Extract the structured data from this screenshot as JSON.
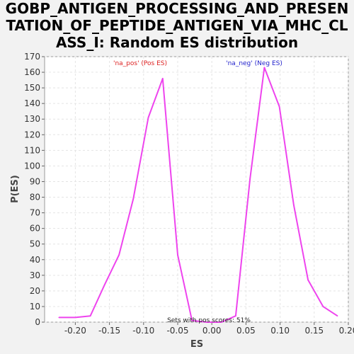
{
  "chart_data": {
    "type": "line",
    "title_lines": [
      "GOBP_ANTIGEN_PROCESSING_AND_PRESEN",
      "TATION_OF_PEPTIDE_ANTIGEN_VIA_MHC_CL",
      "ASS_I: Random ES distribution"
    ],
    "xlabel": "ES",
    "ylabel": "P(ES)",
    "xlim": [
      -0.245,
      0.2
    ],
    "ylim": [
      0,
      170
    ],
    "x_ticks": [
      -0.2,
      -0.15,
      -0.1,
      -0.05,
      0.0,
      0.05,
      0.1,
      0.15,
      0.2
    ],
    "x_tick_labels": [
      "-0.20",
      "-0.15",
      "-0.10",
      "-0.05",
      "0.00",
      "0.05",
      "0.10",
      "0.15",
      "0.20"
    ],
    "y_ticks": [
      0,
      10,
      20,
      30,
      40,
      50,
      60,
      70,
      80,
      90,
      100,
      110,
      120,
      130,
      140,
      150,
      160,
      170
    ],
    "y_tick_labels": [
      "0",
      "10",
      "20",
      "30",
      "40",
      "50",
      "60",
      "70",
      "80",
      "90",
      "100",
      "110",
      "120",
      "130",
      "140",
      "150",
      "160",
      "170"
    ],
    "grid": true,
    "series": [
      {
        "color": "#ee44ee",
        "x": [
          -0.224,
          -0.2,
          -0.178,
          -0.157,
          -0.136,
          -0.115,
          -0.093,
          -0.072,
          -0.05,
          -0.029,
          -0.007,
          0.014,
          0.035,
          0.056,
          0.077,
          0.099,
          0.12,
          0.141,
          0.163,
          0.184
        ],
        "y": [
          3,
          3,
          4,
          24,
          43,
          79,
          131,
          156,
          43,
          1,
          0,
          0,
          4,
          92,
          163,
          138,
          75,
          27,
          10,
          4
        ]
      }
    ],
    "legend": {
      "pos_label": "'na_pos' (Pos ES)",
      "pos_color": "#dd2222",
      "neg_label": "'na_neg' (Neg ES)",
      "neg_color": "#2222cc"
    },
    "annotation": "Sets with pos scores: 51%"
  }
}
